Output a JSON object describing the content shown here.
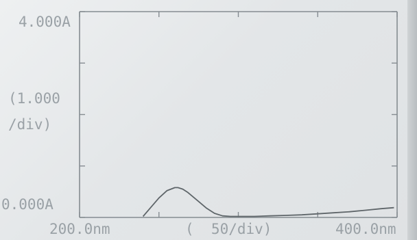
{
  "chart_data": {
    "type": "line",
    "xlabel": "",
    "ylabel": "",
    "y_top_label": "4.000A",
    "y_bottom_label": "0.000A",
    "y_div_label_line1": "(1.000",
    "y_div_label_line2": "/div)",
    "x_left_label": "200.0nm",
    "x_right_label": "400.0nm",
    "x_div_label": "(  50/div)",
    "xlim": [
      200,
      400
    ],
    "ylim": [
      0,
      4
    ],
    "grid": false,
    "series": [
      {
        "x": [
          240,
          245,
          250,
          255,
          260,
          262,
          265,
          268,
          270,
          275,
          280,
          285,
          290,
          295,
          300,
          305,
          310,
          320,
          330,
          340,
          350,
          360,
          370,
          380,
          390,
          398
        ],
        "y": [
          0.02,
          0.2,
          0.38,
          0.52,
          0.58,
          0.58,
          0.55,
          0.49,
          0.44,
          0.31,
          0.18,
          0.08,
          0.03,
          0.02,
          0.02,
          0.02,
          0.02,
          0.03,
          0.04,
          0.05,
          0.07,
          0.09,
          0.11,
          0.14,
          0.17,
          0.19
        ]
      }
    ]
  },
  "colors": {
    "axis": "#858c91",
    "trace": "#5e6569",
    "text": "#9aa1a6"
  }
}
